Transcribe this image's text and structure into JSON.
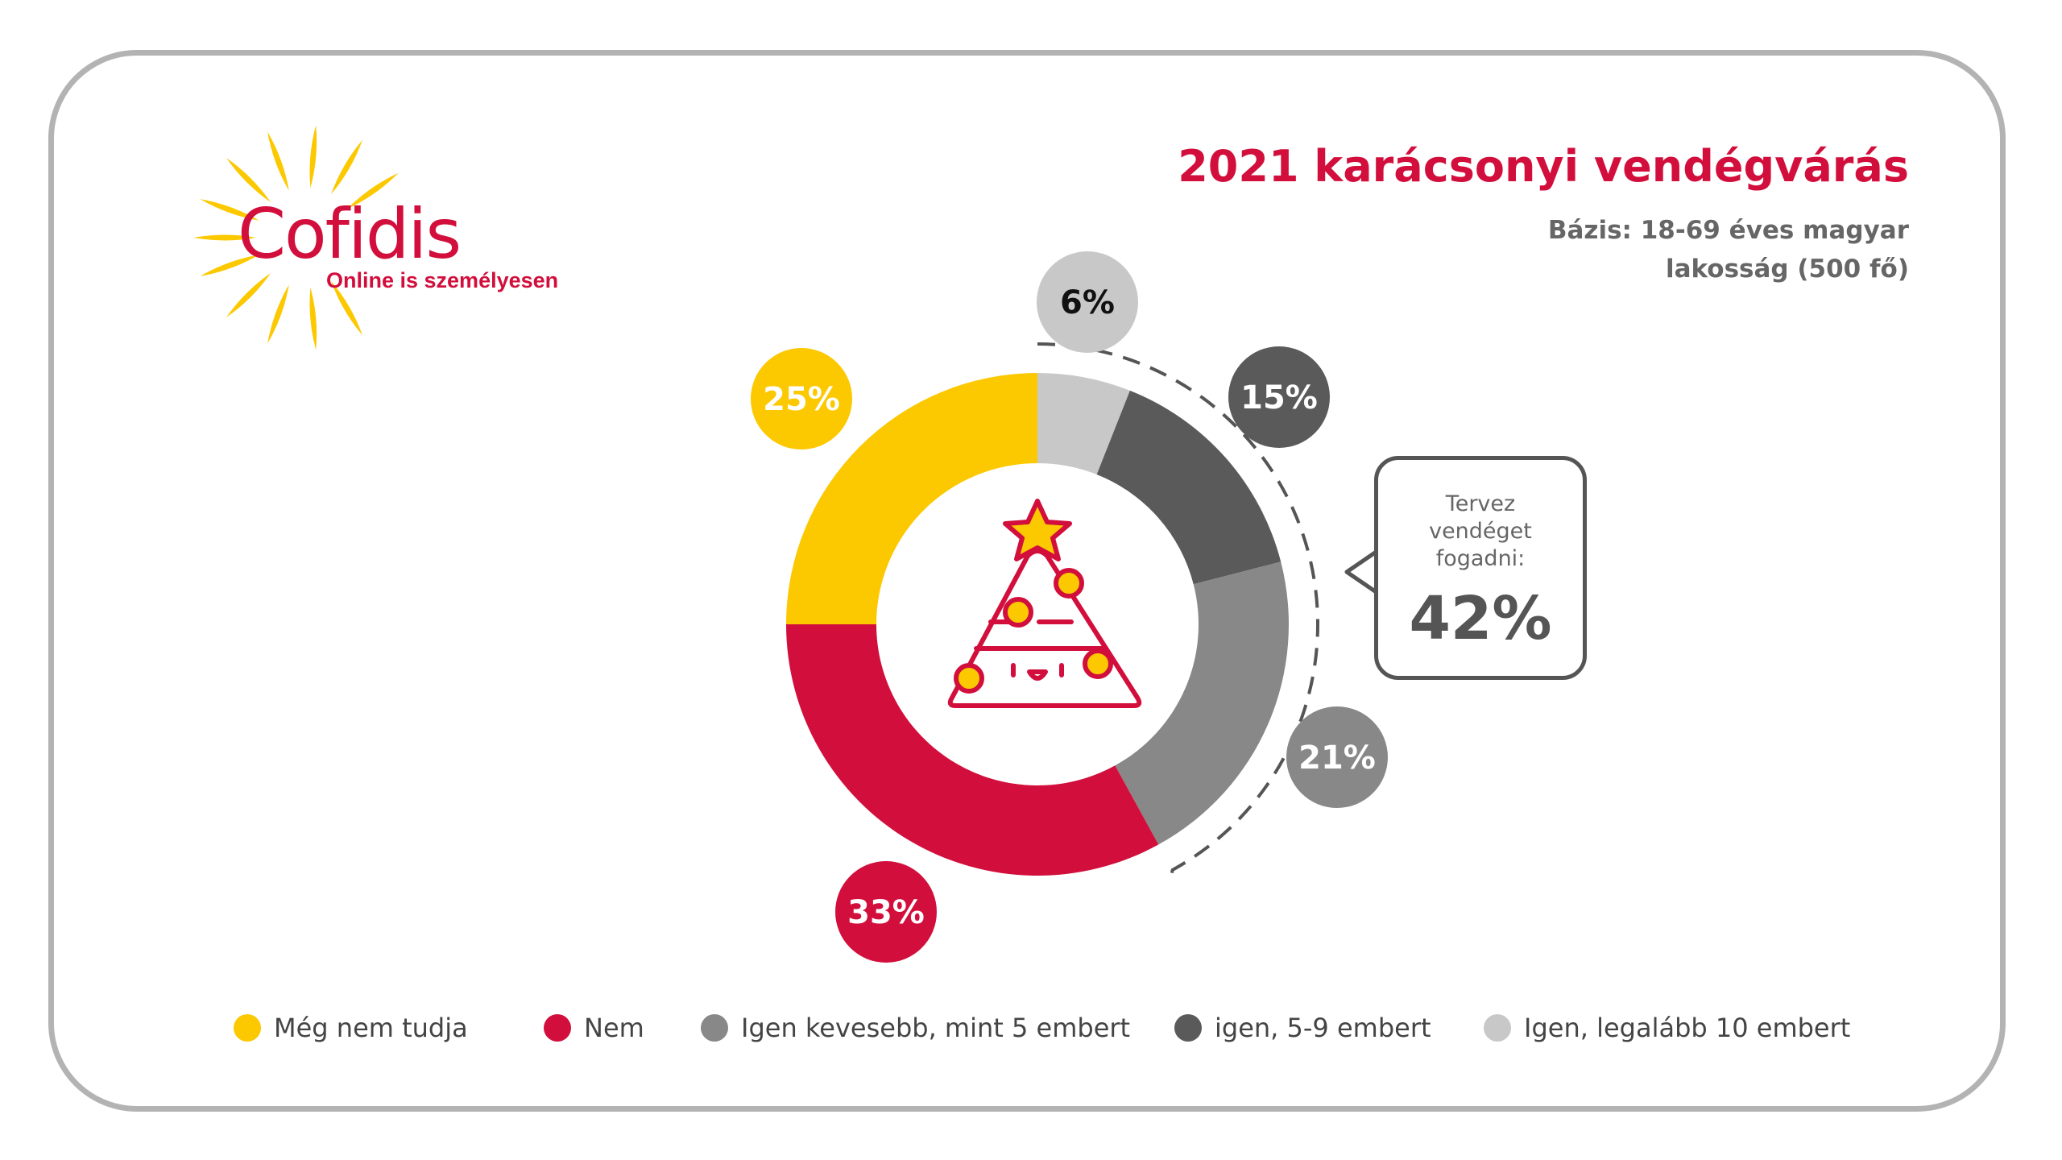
{
  "header": {
    "brand": "Cofidis",
    "tagline": "Online is személyesen",
    "title": "2021 karácsonyi vendégvárás",
    "subtitle": "Bázis: 18-69 éves magyar lakosság (500 fő)"
  },
  "callout": {
    "text": "Tervez\nvendéget\nfogadni:",
    "value": "42%"
  },
  "colors": {
    "brand_red": "#d20f3c",
    "yellow": "#fcc800",
    "gray_mid": "#888888",
    "gray_dark": "#5a5a5a",
    "gray_light": "#c8c8c8"
  },
  "chart_data": {
    "type": "pie",
    "slices": [
      {
        "name": "Igen, legalább 10 embert",
        "value": 6,
        "label": "6%",
        "color": "#c8c8c8",
        "label_color": "#111111"
      },
      {
        "name": "igen, 5-9 embert",
        "value": 15,
        "label": "15%",
        "color": "#5a5a5a",
        "label_color": "#ffffff"
      },
      {
        "name": "Igen kevesebb, mint 5 embert",
        "value": 21,
        "label": "21%",
        "color": "#888888",
        "label_color": "#ffffff"
      },
      {
        "name": "Nem",
        "value": 33,
        "label": "33%",
        "color": "#d20f3c",
        "label_color": "#ffffff"
      },
      {
        "name": "Még nem tudja",
        "value": 25,
        "label": "25%",
        "color": "#fcc800",
        "label_color": "#ffffff"
      }
    ]
  },
  "legend": [
    {
      "label": "Még nem tudja",
      "color": "#fcc800"
    },
    {
      "label": "Nem",
      "color": "#d20f3c"
    },
    {
      "label": "Igen kevesebb, mint 5 embert",
      "color": "#888888"
    },
    {
      "label": "igen, 5-9 embert",
      "color": "#5a5a5a"
    },
    {
      "label": "Igen, legalább 10 embert",
      "color": "#c8c8c8"
    }
  ],
  "icons": {
    "center": "christmas-tree-icon",
    "logo": "sun-logo-icon"
  }
}
